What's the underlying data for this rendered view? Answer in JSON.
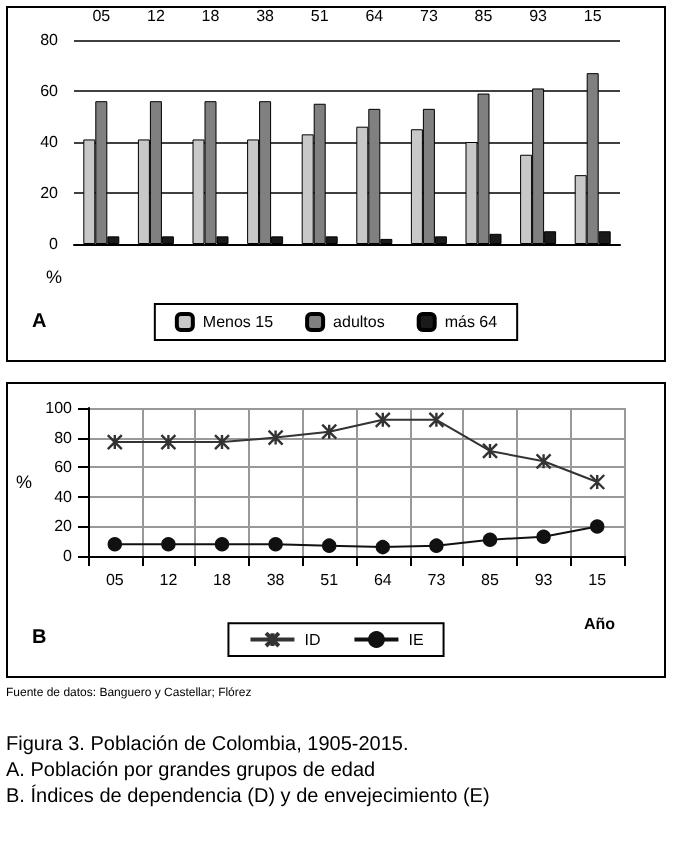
{
  "chart_data": [
    {
      "type": "bar",
      "categories": [
        "05",
        "12",
        "18",
        "38",
        "51",
        "64",
        "73",
        "85",
        "93",
        "15"
      ],
      "ylabel": "%",
      "ylim": [
        0,
        80
      ],
      "yticks": [
        0,
        20,
        40,
        60,
        80
      ],
      "grid": "y",
      "legend": "bottom",
      "annotations": [
        "A"
      ],
      "series": [
        {
          "name": "Menos 15",
          "color": "#c8c8c8",
          "values": [
            41,
            41,
            41,
            41,
            43,
            46,
            45,
            40,
            35,
            27
          ]
        },
        {
          "name": "adultos",
          "color": "#808080",
          "values": [
            56,
            56,
            56,
            56,
            55,
            53,
            53,
            59,
            61,
            67
          ]
        },
        {
          "name": "más 64",
          "color": "#1a1a1a",
          "values": [
            3,
            3,
            3,
            3,
            3,
            2,
            3,
            4,
            5,
            5
          ]
        }
      ]
    },
    {
      "type": "line",
      "categories": [
        "05",
        "12",
        "18",
        "38",
        "51",
        "64",
        "73",
        "85",
        "93",
        "15"
      ],
      "xlabel": "Año",
      "ylabel": "%",
      "ylim": [
        0,
        100
      ],
      "yticks": [
        0,
        20,
        40,
        60,
        80,
        100
      ],
      "grid": true,
      "legend": "bottom",
      "annotations": [
        "B",
        "Fuente de datos: Banguero y Castellar; Flórez",
        "Figura 3. Población de Colombia, 1905-2015.",
        "A. Población por grandes grupos de edad",
        "B. Índices de dependencia (D) y de envejecimiento (E)"
      ],
      "series": [
        {
          "name": "ID",
          "color": "#333333",
          "marker": "cross",
          "values": [
            77,
            77,
            77,
            80,
            84,
            92,
            92,
            71,
            64,
            50
          ]
        },
        {
          "name": "IE",
          "color": "#111111",
          "marker": "circle",
          "values": [
            8,
            8,
            8,
            8,
            7,
            6,
            7,
            11,
            13,
            20
          ]
        }
      ]
    }
  ]
}
